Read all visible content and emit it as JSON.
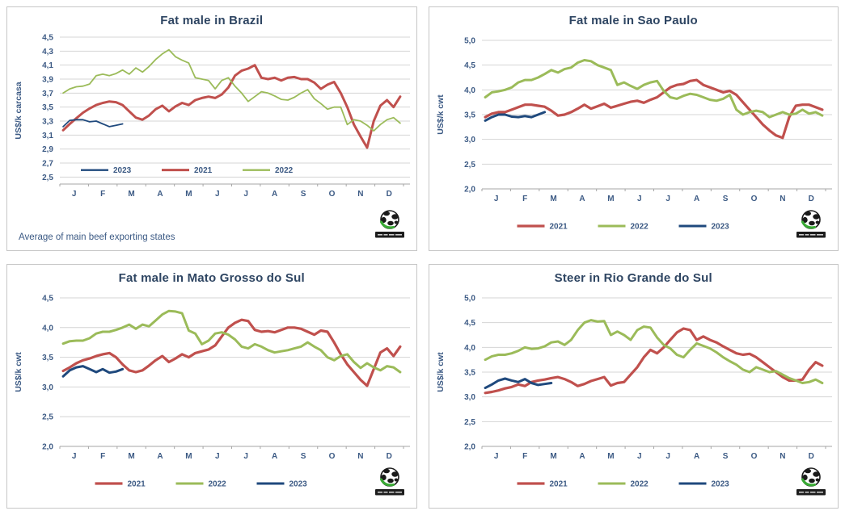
{
  "colors": {
    "y2021": "#C0504D",
    "y2022": "#9BBB59",
    "y2023": "#1F497D",
    "grid": "#D4D4D4",
    "axis": "#A6A6A6",
    "text": "#3C5A84",
    "title": "#2E4562"
  },
  "chart_data": [
    {
      "type": "line",
      "title": "Fat male in Brazil",
      "ylabel": "US$/k carcasa",
      "footnote": "Average  of main beef exporting states",
      "x_categories": [
        "J",
        "F",
        "M",
        "A",
        "M",
        "J",
        "J",
        "A",
        "S",
        "O",
        "N",
        "D"
      ],
      "ylim": [
        2.4,
        4.5
      ],
      "ytick_values": [
        4.5,
        4.3,
        4.1,
        3.9,
        3.7,
        3.5,
        3.3,
        3.1,
        2.9,
        2.7,
        2.5
      ],
      "ytick_labels": [
        "4,5",
        "4,3",
        "4,1",
        "3,9",
        "3,7",
        "3,5",
        "3,3",
        "3,1",
        "2,9",
        "2,7",
        "2,5"
      ],
      "grid": true,
      "legend_position": "inside",
      "legend_order": [
        "2023",
        "2021",
        "2022"
      ],
      "series": [
        {
          "name": "2021",
          "color": "#C0504D",
          "stroke_width": 3,
          "values": [
            3.17,
            3.26,
            3.34,
            3.42,
            3.48,
            3.53,
            3.56,
            3.58,
            3.57,
            3.53,
            3.44,
            3.35,
            3.32,
            3.38,
            3.47,
            3.52,
            3.44,
            3.51,
            3.56,
            3.53,
            3.6,
            3.63,
            3.65,
            3.63,
            3.68,
            3.78,
            3.95,
            4.02,
            4.05,
            4.1,
            3.92,
            3.9,
            3.92,
            3.88,
            3.92,
            3.93,
            3.9,
            3.9,
            3.85,
            3.76,
            3.82,
            3.86,
            3.7,
            3.5,
            3.25,
            3.08,
            2.92,
            3.3,
            3.52,
            3.6,
            3.5,
            3.65
          ]
        },
        {
          "name": "2022",
          "color": "#9BBB59",
          "stroke_width": 1.8,
          "values": [
            3.7,
            3.76,
            3.79,
            3.8,
            3.83,
            3.95,
            3.97,
            3.95,
            3.98,
            4.03,
            3.97,
            4.06,
            4.0,
            4.08,
            4.18,
            4.26,
            4.32,
            4.22,
            4.17,
            4.13,
            3.92,
            3.9,
            3.88,
            3.76,
            3.88,
            3.92,
            3.8,
            3.7,
            3.58,
            3.65,
            3.72,
            3.7,
            3.66,
            3.61,
            3.6,
            3.64,
            3.7,
            3.75,
            3.62,
            3.55,
            3.47,
            3.5,
            3.5,
            3.25,
            3.32,
            3.3,
            3.24,
            3.16,
            3.25,
            3.32,
            3.35,
            3.27
          ]
        },
        {
          "name": "2023",
          "color": "#1F497D",
          "stroke_width": 1.8,
          "values": [
            3.22,
            3.31,
            3.32,
            3.32,
            3.29,
            3.3,
            3.26,
            3.22,
            3.24,
            3.26
          ]
        }
      ]
    },
    {
      "type": "line",
      "title": "Fat male in Sao Paulo",
      "ylabel": "US$/k cwt",
      "x_categories": [
        "J",
        "F",
        "M",
        "A",
        "M",
        "J",
        "J",
        "A",
        "S",
        "O",
        "N",
        "D"
      ],
      "ylim": [
        2.0,
        5.0
      ],
      "ytick_values": [
        5.0,
        4.5,
        4.0,
        3.5,
        3.0,
        2.5,
        2.0
      ],
      "ytick_labels": [
        "5,0",
        "4,5",
        "4,0",
        "3,5",
        "3,0",
        "2,5",
        "2,0"
      ],
      "grid": true,
      "legend_position": "bottom",
      "legend_order": [
        "2021",
        "2022",
        "2023"
      ],
      "series": [
        {
          "name": "2021",
          "color": "#C0504D",
          "stroke_width": 3.2,
          "values": [
            3.45,
            3.52,
            3.55,
            3.55,
            3.6,
            3.65,
            3.7,
            3.7,
            3.68,
            3.66,
            3.58,
            3.48,
            3.5,
            3.55,
            3.62,
            3.7,
            3.62,
            3.67,
            3.72,
            3.64,
            3.68,
            3.72,
            3.76,
            3.78,
            3.74,
            3.8,
            3.85,
            3.95,
            4.05,
            4.1,
            4.12,
            4.18,
            4.2,
            4.1,
            4.05,
            4.0,
            3.95,
            3.98,
            3.9,
            3.75,
            3.6,
            3.45,
            3.3,
            3.18,
            3.08,
            3.03,
            3.45,
            3.68,
            3.7,
            3.7,
            3.65,
            3.6
          ]
        },
        {
          "name": "2022",
          "color": "#9BBB59",
          "stroke_width": 3,
          "values": [
            3.85,
            3.95,
            3.97,
            4.0,
            4.05,
            4.15,
            4.2,
            4.2,
            4.25,
            4.32,
            4.4,
            4.35,
            4.42,
            4.45,
            4.55,
            4.6,
            4.58,
            4.5,
            4.45,
            4.4,
            4.1,
            4.15,
            4.08,
            4.02,
            4.1,
            4.15,
            4.18,
            3.98,
            3.85,
            3.82,
            3.88,
            3.92,
            3.9,
            3.85,
            3.8,
            3.78,
            3.82,
            3.9,
            3.6,
            3.5,
            3.55,
            3.58,
            3.55,
            3.45,
            3.5,
            3.55,
            3.5,
            3.52,
            3.6,
            3.52,
            3.55,
            3.48
          ]
        },
        {
          "name": "2023",
          "color": "#1F497D",
          "stroke_width": 3,
          "values": [
            3.38,
            3.45,
            3.5,
            3.5,
            3.46,
            3.45,
            3.47,
            3.45,
            3.5,
            3.55
          ]
        }
      ]
    },
    {
      "type": "line",
      "title": "Fat male in Mato Grosso do Sul",
      "ylabel": "US$/k cwt",
      "x_categories": [
        "J",
        "F",
        "M",
        "A",
        "M",
        "J",
        "J",
        "A",
        "S",
        "O",
        "N",
        "D"
      ],
      "ylim": [
        2.0,
        4.5
      ],
      "ytick_values": [
        4.5,
        4.0,
        3.5,
        3.0,
        2.5,
        2.0
      ],
      "ytick_labels": [
        "4,5",
        "4,0",
        "3,5",
        "3,0",
        "2,5",
        "2,0"
      ],
      "grid": true,
      "legend_position": "bottom",
      "legend_order": [
        "2021",
        "2022",
        "2023"
      ],
      "series": [
        {
          "name": "2021",
          "color": "#C0504D",
          "stroke_width": 3.2,
          "values": [
            3.27,
            3.33,
            3.4,
            3.45,
            3.48,
            3.52,
            3.55,
            3.57,
            3.5,
            3.38,
            3.28,
            3.25,
            3.28,
            3.36,
            3.45,
            3.52,
            3.42,
            3.48,
            3.55,
            3.5,
            3.57,
            3.6,
            3.63,
            3.7,
            3.85,
            4.0,
            4.08,
            4.13,
            4.11,
            3.96,
            3.93,
            3.94,
            3.92,
            3.96,
            4.0,
            4.0,
            3.98,
            3.93,
            3.88,
            3.95,
            3.93,
            3.75,
            3.55,
            3.38,
            3.25,
            3.12,
            3.02,
            3.3,
            3.58,
            3.65,
            3.52,
            3.68
          ]
        },
        {
          "name": "2022",
          "color": "#9BBB59",
          "stroke_width": 3,
          "values": [
            3.73,
            3.77,
            3.78,
            3.78,
            3.82,
            3.9,
            3.93,
            3.93,
            3.96,
            4.0,
            4.05,
            3.98,
            4.05,
            4.02,
            4.12,
            4.22,
            4.28,
            4.27,
            4.24,
            3.95,
            3.9,
            3.72,
            3.78,
            3.9,
            3.92,
            3.88,
            3.8,
            3.68,
            3.65,
            3.72,
            3.68,
            3.62,
            3.58,
            3.6,
            3.62,
            3.65,
            3.68,
            3.75,
            3.68,
            3.62,
            3.5,
            3.45,
            3.52,
            3.55,
            3.42,
            3.32,
            3.4,
            3.33,
            3.28,
            3.35,
            3.33,
            3.25
          ]
        },
        {
          "name": "2023",
          "color": "#1F497D",
          "stroke_width": 3,
          "values": [
            3.18,
            3.28,
            3.33,
            3.35,
            3.3,
            3.25,
            3.3,
            3.24,
            3.26,
            3.3
          ]
        }
      ]
    },
    {
      "type": "line",
      "title": "Steer  in Rio Grande do Sul",
      "ylabel": "US$/k cwt",
      "x_categories": [
        "J",
        "F",
        "M",
        "A",
        "M",
        "J",
        "J",
        "A",
        "S",
        "O",
        "N",
        "D"
      ],
      "ylim": [
        2.0,
        5.0
      ],
      "ytick_values": [
        5.0,
        4.5,
        4.0,
        3.5,
        3.0,
        2.5,
        2.0
      ],
      "ytick_labels": [
        "5,0",
        "4,5",
        "4,0",
        "3,5",
        "3,0",
        "2,5",
        "2,0"
      ],
      "grid": true,
      "legend_position": "bottom",
      "legend_order": [
        "2021",
        "2022",
        "2023"
      ],
      "series": [
        {
          "name": "2021",
          "color": "#C0504D",
          "stroke_width": 3.2,
          "values": [
            3.08,
            3.1,
            3.13,
            3.17,
            3.2,
            3.25,
            3.22,
            3.3,
            3.33,
            3.35,
            3.38,
            3.4,
            3.36,
            3.3,
            3.22,
            3.26,
            3.32,
            3.36,
            3.4,
            3.23,
            3.28,
            3.3,
            3.45,
            3.6,
            3.8,
            3.95,
            3.88,
            4.0,
            4.15,
            4.3,
            4.38,
            4.35,
            4.15,
            4.22,
            4.15,
            4.1,
            4.02,
            3.95,
            3.88,
            3.85,
            3.87,
            3.8,
            3.7,
            3.6,
            3.5,
            3.4,
            3.33,
            3.33,
            3.35,
            3.55,
            3.7,
            3.63
          ]
        },
        {
          "name": "2022",
          "color": "#9BBB59",
          "stroke_width": 3,
          "values": [
            3.75,
            3.82,
            3.85,
            3.85,
            3.88,
            3.93,
            4.0,
            3.97,
            3.98,
            4.02,
            4.1,
            4.12,
            4.05,
            4.15,
            4.35,
            4.5,
            4.55,
            4.52,
            4.53,
            4.25,
            4.32,
            4.25,
            4.15,
            4.35,
            4.42,
            4.4,
            4.2,
            4.05,
            3.98,
            3.85,
            3.8,
            3.95,
            4.08,
            4.03,
            3.98,
            3.9,
            3.8,
            3.72,
            3.65,
            3.55,
            3.5,
            3.6,
            3.55,
            3.5,
            3.52,
            3.45,
            3.38,
            3.33,
            3.28,
            3.3,
            3.35,
            3.28
          ]
        },
        {
          "name": "2023",
          "color": "#1F497D",
          "stroke_width": 3,
          "values": [
            3.18,
            3.25,
            3.33,
            3.37,
            3.33,
            3.3,
            3.36,
            3.28,
            3.24,
            3.26,
            3.28
          ]
        }
      ]
    }
  ]
}
